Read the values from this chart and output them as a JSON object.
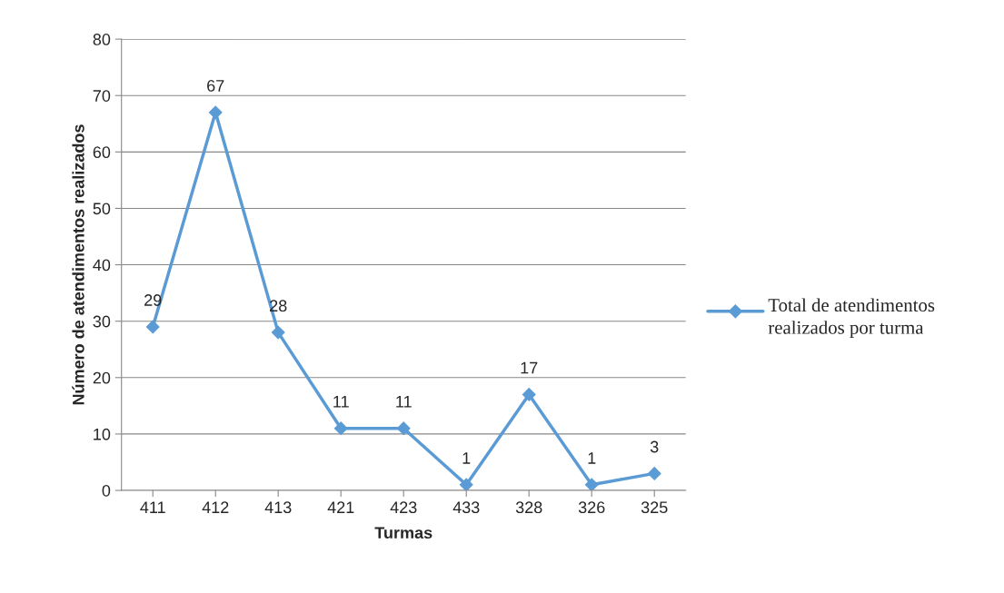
{
  "chart_data": {
    "type": "line",
    "xlabel": "Turmas",
    "ylabel": "Número de atendimentos realizados",
    "categories": [
      "411",
      "412",
      "413",
      "421",
      "423",
      "433",
      "328",
      "326",
      "325"
    ],
    "series": [
      {
        "name": "Total de atendimentos realizados por turma",
        "color": "#5b9bd5",
        "values": [
          29,
          67,
          28,
          11,
          11,
          1,
          17,
          1,
          3
        ]
      }
    ],
    "ylim": [
      0,
      80
    ],
    "yticks": [
      0,
      10,
      20,
      30,
      40,
      50,
      60,
      70,
      80
    ],
    "grid": "y",
    "legend": "right",
    "marker": "diamond",
    "line_style": "solid",
    "data_labels": true
  }
}
